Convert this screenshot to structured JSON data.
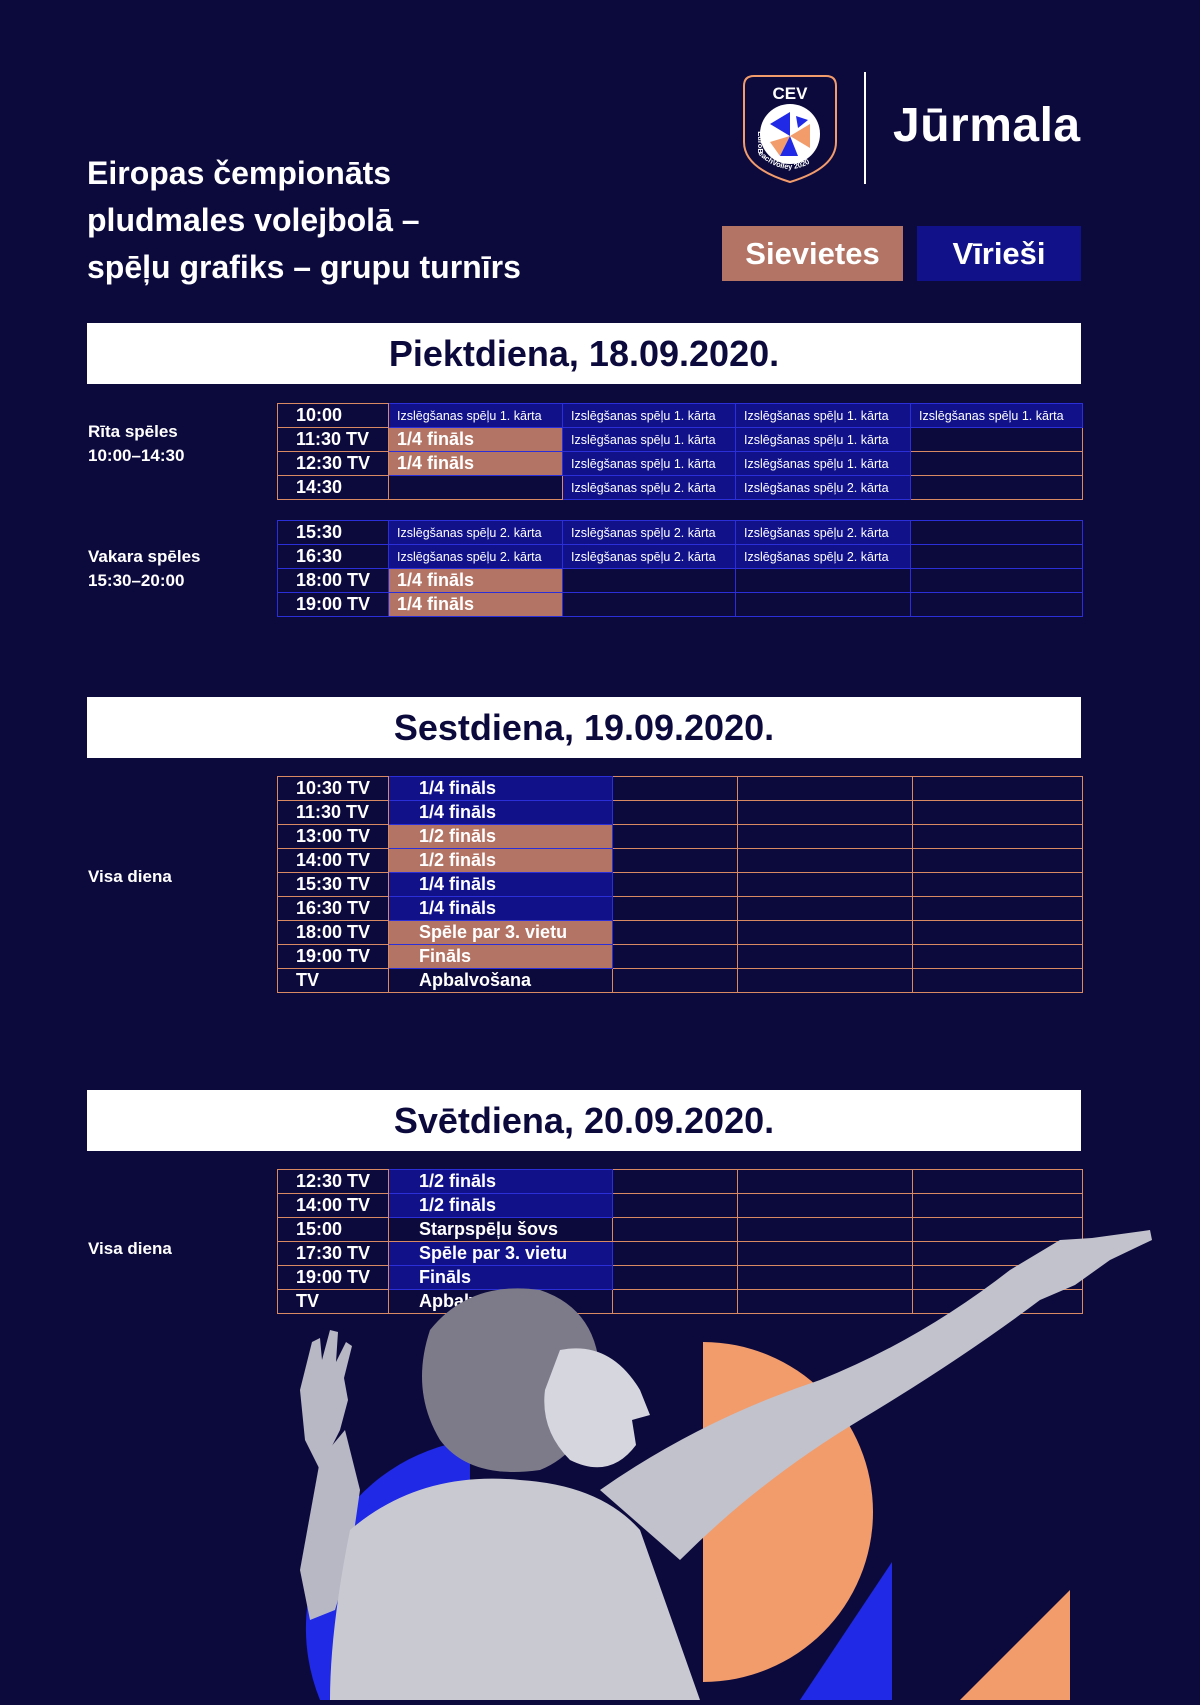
{
  "header": {
    "title_lines": [
      "Eiropas čempionāts",
      "pludmales volejbolā –",
      "spēļu grafiks –  grupu turnīrs"
    ],
    "logo_text": "CEV",
    "logo_ring_text": "EuroBeachVolley 2020",
    "city": "Jūrmala",
    "buttons": {
      "women": "Sievietes",
      "men": "Vīrieši"
    }
  },
  "colors": {
    "background": "#0c0a3d",
    "women": "#b37465",
    "men": "#11128a",
    "grid_orange": "#d98a63",
    "grid_blue": "#2b2fd8",
    "art_orange": "#f29b6b",
    "art_blue": "#1f29e6"
  },
  "days": [
    {
      "title": "Piektdiena, 18.09.2020.",
      "sessions": [
        {
          "label": [
            "Rīta spēles",
            "10:00–14:30"
          ],
          "rows": [
            {
              "time": "10:00",
              "cells": [
                "Izslēgšanas spēļu 1. kārta",
                "Izslēgšanas spēļu 1. kārta",
                "Izslēgšanas spēļu 1. kārta",
                "Izslēgšanas spēļu 1. kārta"
              ]
            },
            {
              "time": "11:30 TV",
              "cells": [
                "1/4 fināls",
                "Izslēgšanas spēļu 1. kārta",
                "Izslēgšanas spēļu 1. kārta",
                ""
              ]
            },
            {
              "time": "12:30 TV",
              "cells": [
                "1/4 fināls",
                "Izslēgšanas spēļu 1. kārta",
                "Izslēgšanas spēļu 1. kārta",
                ""
              ]
            },
            {
              "time": "14:30",
              "cells": [
                "",
                "Izslēgšanas spēļu 2. kārta",
                "Izslēgšanas spēļu 2. kārta",
                ""
              ]
            }
          ]
        },
        {
          "label": [
            "Vakara spēles",
            "15:30–20:00"
          ],
          "rows": [
            {
              "time": "15:30",
              "cells": [
                "Izslēgšanas spēļu 2. kārta",
                "Izslēgšanas spēļu 2. kārta",
                "Izslēgšanas spēļu 2. kārta",
                ""
              ]
            },
            {
              "time": "16:30",
              "cells": [
                "Izslēgšanas spēļu 2. kārta",
                "Izslēgšanas spēļu 2. kārta",
                "Izslēgšanas spēļu 2. kārta",
                ""
              ]
            },
            {
              "time": "18:00 TV",
              "cells": [
                "1/4 fināls",
                "",
                "",
                ""
              ]
            },
            {
              "time": "19:00 TV",
              "cells": [
                "1/4 fināls",
                "",
                "",
                ""
              ]
            }
          ]
        }
      ]
    },
    {
      "title": "Sestdiena, 19.09.2020.",
      "label": [
        "Visa diena"
      ],
      "rows": [
        {
          "time": "10:30 TV",
          "match": "1/4 fināls"
        },
        {
          "time": "11:30 TV",
          "match": "1/4 fināls"
        },
        {
          "time": "13:00 TV",
          "match": "1/2 fināls"
        },
        {
          "time": "14:00 TV",
          "match": "1/2 fināls"
        },
        {
          "time": "15:30 TV",
          "match": "1/4 fināls"
        },
        {
          "time": "16:30 TV",
          "match": "1/4 fināls"
        },
        {
          "time": "18:00 TV",
          "match": "Spēle par 3. vietu"
        },
        {
          "time": "19:00 TV",
          "match": "Fināls"
        },
        {
          "time": "TV",
          "match": "Apbalvošana"
        }
      ]
    },
    {
      "title": "Svētdiena, 20.09.2020.",
      "label": [
        "Visa diena"
      ],
      "rows": [
        {
          "time": "12:30 TV",
          "match": "1/2 fināls"
        },
        {
          "time": "14:00 TV",
          "match": "1/2 fināls"
        },
        {
          "time": "15:00",
          "match": "Starpspēļu šovs"
        },
        {
          "time": "17:30  TV",
          "match": "Spēle par 3. vietu"
        },
        {
          "time": "19:00 TV",
          "match": "Fināls"
        },
        {
          "time": "TV",
          "match": "Apbalvošana"
        }
      ]
    }
  ]
}
